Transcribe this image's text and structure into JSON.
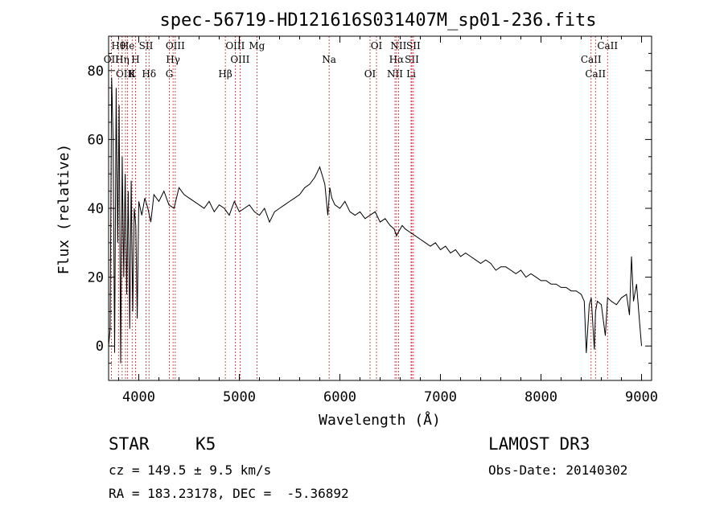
{
  "chart_data": {
    "type": "line",
    "title": "spec-56719-HD121616S031407M_sp01-236.fits",
    "xlabel": "Wavelength (Å)",
    "ylabel": "Flux (relative)",
    "xlim": [
      3700,
      9100
    ],
    "ylim": [
      -10,
      90
    ],
    "xticks": [
      4000,
      5000,
      6000,
      7000,
      8000,
      9000
    ],
    "yticks": [
      0,
      20,
      40,
      60,
      80
    ],
    "series": [
      {
        "name": "flux",
        "x": [
          3700,
          3715,
          3730,
          3745,
          3760,
          3775,
          3790,
          3805,
          3820,
          3835,
          3850,
          3865,
          3880,
          3895,
          3910,
          3925,
          3940,
          3955,
          3970,
          3985,
          4000,
          4030,
          4060,
          4090,
          4120,
          4150,
          4200,
          4250,
          4300,
          4350,
          4400,
          4450,
          4500,
          4550,
          4600,
          4650,
          4700,
          4750,
          4800,
          4850,
          4900,
          4950,
          5000,
          5050,
          5100,
          5150,
          5200,
          5250,
          5300,
          5350,
          5400,
          5450,
          5500,
          5550,
          5600,
          5650,
          5700,
          5750,
          5800,
          5850,
          5880,
          5900,
          5920,
          5950,
          6000,
          6050,
          6100,
          6150,
          6200,
          6250,
          6300,
          6350,
          6400,
          6450,
          6500,
          6540,
          6563,
          6580,
          6620,
          6650,
          6700,
          6750,
          6800,
          6850,
          6900,
          6950,
          7000,
          7050,
          7100,
          7150,
          7200,
          7250,
          7300,
          7350,
          7400,
          7450,
          7500,
          7550,
          7600,
          7650,
          7700,
          7750,
          7800,
          7850,
          7900,
          7950,
          8000,
          8050,
          8100,
          8150,
          8200,
          8250,
          8300,
          8350,
          8400,
          8430,
          8450,
          8480,
          8500,
          8530,
          8542,
          8560,
          8600,
          8640,
          8662,
          8700,
          8750,
          8800,
          8850,
          8880,
          8900,
          8920,
          8950,
          8980,
          9000
        ],
        "values": [
          0,
          5,
          78,
          60,
          -2,
          75,
          30,
          70,
          -5,
          55,
          20,
          50,
          15,
          45,
          5,
          48,
          10,
          40,
          35,
          8,
          42,
          38,
          43,
          40,
          36,
          44,
          42,
          45,
          41,
          40,
          46,
          44,
          43,
          42,
          41,
          40,
          42,
          39,
          41,
          40,
          38,
          42,
          39,
          40,
          41,
          39,
          38,
          40,
          36,
          39,
          40,
          41,
          42,
          43,
          44,
          46,
          47,
          49,
          52,
          47,
          38,
          46,
          43,
          41,
          40,
          42,
          39,
          38,
          39,
          37,
          38,
          39,
          36,
          37,
          35,
          34,
          32,
          33,
          35,
          34,
          33,
          32,
          31,
          30,
          29,
          30,
          28,
          29,
          27,
          28,
          26,
          27,
          26,
          25,
          24,
          25,
          24,
          22,
          23,
          23,
          22,
          21,
          22,
          20,
          21,
          20,
          19,
          19,
          18,
          18,
          17,
          17,
          16,
          16,
          15,
          13,
          -2,
          12,
          14,
          -1,
          10,
          13,
          12,
          3,
          14,
          13,
          12,
          14,
          15,
          9,
          26,
          13,
          18,
          7,
          0
        ]
      }
    ],
    "emission_lines": [
      {
        "label": "Hθ",
        "x": 3798
      },
      {
        "label": "OII",
        "x": 3727
      },
      {
        "label": "OIII",
        "x": 3868
      },
      {
        "label": "He",
        "x": 3889
      },
      {
        "label": "Hη",
        "x": 3835
      },
      {
        "label": "K",
        "x": 3934
      },
      {
        "label": "SII",
        "x": 4072
      },
      {
        "label": "H",
        "x": 3968
      },
      {
        "label": "Hδ",
        "x": 4102
      },
      {
        "label": "OIII",
        "x": 4363
      },
      {
        "label": "Hγ",
        "x": 4341
      },
      {
        "label": "G",
        "x": 4304
      },
      {
        "label": "OIII",
        "x": 4959
      },
      {
        "label": "OIII",
        "x": 5007
      },
      {
        "label": "Hβ",
        "x": 4861
      },
      {
        "label": "Mg",
        "x": 5175
      },
      {
        "label": "Na",
        "x": 5893
      },
      {
        "label": "OI",
        "x": 6300
      },
      {
        "label": "OI",
        "x": 6364
      },
      {
        "label": "Hα",
        "x": 6563
      },
      {
        "label": "NII",
        "x": 6548
      },
      {
        "label": "NII",
        "x": 6583
      },
      {
        "label": "SII",
        "x": 6716
      },
      {
        "label": "Li",
        "x": 6708
      },
      {
        "label": "SII",
        "x": 6731
      },
      {
        "label": "CaII",
        "x": 8498
      },
      {
        "label": "CaII",
        "x": 8542
      },
      {
        "label": "CaII",
        "x": 8662
      }
    ]
  },
  "info": {
    "class": "STAR",
    "subclass": "K5",
    "survey": "LAMOST DR3",
    "cz": "cz = 149.5 ± 9.5 km/s",
    "obs_date": "Obs-Date: 20140302",
    "radec": "RA = 183.23178, DEC =  -5.36892"
  },
  "colors": {
    "spectrum": "#000000",
    "lines": "#cc2222"
  }
}
